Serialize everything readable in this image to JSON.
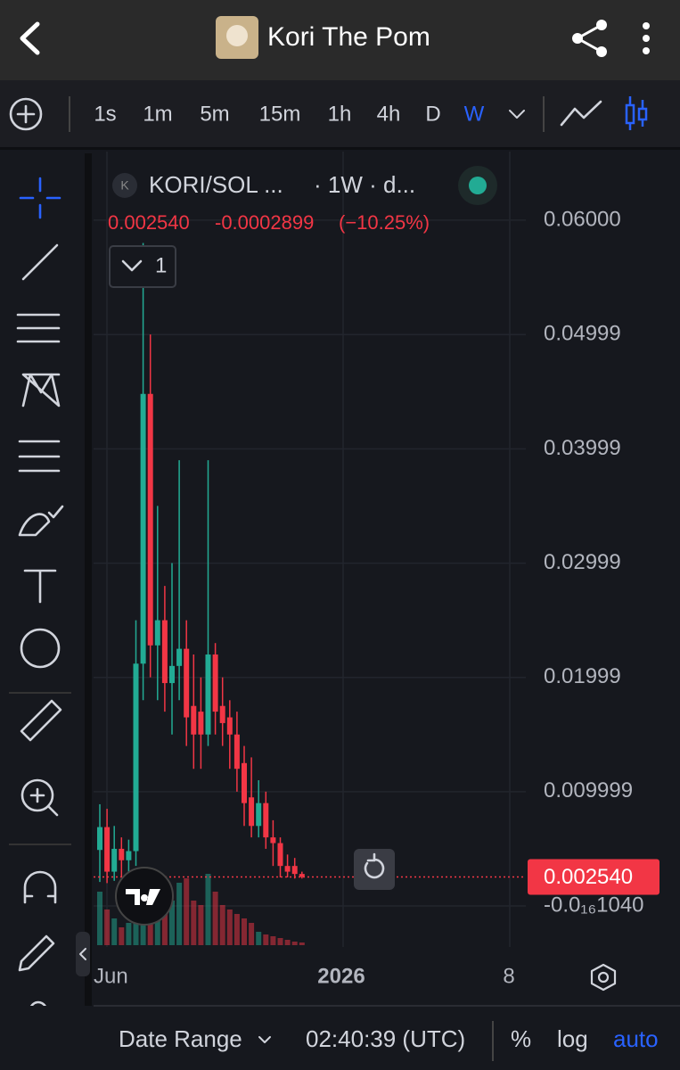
{
  "header": {
    "title": "Kori The Pom"
  },
  "toolbar": {
    "intervals": [
      "1s",
      "1m",
      "5m",
      "15m",
      "1h",
      "4h",
      "D",
      "W"
    ],
    "active": "W"
  },
  "chart_data": {
    "type": "candlestick",
    "symbol": "KORI/SOL ...",
    "interval_info": "· 1W · d...",
    "legend": {
      "last": "0.002540",
      "change": "-0.0002899",
      "change_percent": "(−10.25%)"
    },
    "indicator_count": "1",
    "up_color": "#22ab94",
    "down_color": "#f23645",
    "ylim": [
      -0.0046,
      0.066
    ],
    "yticks": [
      {
        "value": 0.06,
        "label": "0.06000"
      },
      {
        "value": 0.04999,
        "label": "0.04999"
      },
      {
        "value": 0.03999,
        "label": "0.03999"
      },
      {
        "value": 0.02999,
        "label": "0.02999"
      },
      {
        "value": 0.01999,
        "label": "0.01999"
      },
      {
        "value": 0.009999,
        "label": "0.009999"
      },
      {
        "value": -1.04e-17,
        "label": "-0.0₁₆1040"
      }
    ],
    "current_price": {
      "value": 0.00254,
      "label": "0.002540"
    },
    "x_labels": [
      "Jun",
      "2026",
      "8"
    ],
    "candles": [
      {
        "open": 0.0049,
        "high": 0.0089,
        "low": 0.0021,
        "close": 0.0069
      },
      {
        "open": 0.0069,
        "high": 0.0085,
        "low": 0.002,
        "close": 0.003
      },
      {
        "open": 0.003,
        "high": 0.007,
        "low": 0.0022,
        "close": 0.005
      },
      {
        "open": 0.005,
        "high": 0.006,
        "low": 0.0025,
        "close": 0.004
      },
      {
        "open": 0.004,
        "high": 0.0058,
        "low": 0.003,
        "close": 0.0048
      },
      {
        "open": 0.0048,
        "high": 0.025,
        "low": 0.0035,
        "close": 0.0212
      },
      {
        "open": 0.0212,
        "high": 0.058,
        "low": 0.018,
        "close": 0.0448
      },
      {
        "open": 0.0448,
        "high": 0.05,
        "low": 0.02,
        "close": 0.0228
      },
      {
        "open": 0.0228,
        "high": 0.035,
        "low": 0.018,
        "close": 0.025
      },
      {
        "open": 0.025,
        "high": 0.028,
        "low": 0.017,
        "close": 0.0195
      },
      {
        "open": 0.0195,
        "high": 0.03,
        "low": 0.015,
        "close": 0.021
      },
      {
        "open": 0.021,
        "high": 0.039,
        "low": 0.018,
        "close": 0.0225
      },
      {
        "open": 0.0225,
        "high": 0.025,
        "low": 0.014,
        "close": 0.0165
      },
      {
        "open": 0.0175,
        "high": 0.022,
        "low": 0.012,
        "close": 0.015
      },
      {
        "open": 0.017,
        "high": 0.02,
        "low": 0.012,
        "close": 0.015
      },
      {
        "open": 0.015,
        "high": 0.039,
        "low": 0.014,
        "close": 0.022
      },
      {
        "open": 0.022,
        "high": 0.023,
        "low": 0.015,
        "close": 0.017
      },
      {
        "open": 0.0175,
        "high": 0.02,
        "low": 0.014,
        "close": 0.016
      },
      {
        "open": 0.0165,
        "high": 0.018,
        "low": 0.012,
        "close": 0.015
      },
      {
        "open": 0.015,
        "high": 0.017,
        "low": 0.01,
        "close": 0.012
      },
      {
        "open": 0.0125,
        "high": 0.014,
        "low": 0.007,
        "close": 0.009
      },
      {
        "open": 0.0095,
        "high": 0.013,
        "low": 0.006,
        "close": 0.007
      },
      {
        "open": 0.007,
        "high": 0.011,
        "low": 0.006,
        "close": 0.009
      },
      {
        "open": 0.009,
        "high": 0.01,
        "low": 0.005,
        "close": 0.006
      },
      {
        "open": 0.006,
        "high": 0.0075,
        "low": 0.0035,
        "close": 0.0055
      },
      {
        "open": 0.0055,
        "high": 0.006,
        "low": 0.0025,
        "close": 0.0035
      },
      {
        "open": 0.0035,
        "high": 0.0045,
        "low": 0.0025,
        "close": 0.003
      },
      {
        "open": 0.0035,
        "high": 0.0042,
        "low": 0.0024,
        "close": 0.0028
      },
      {
        "open": 0.0028,
        "high": 0.003,
        "low": 0.0024,
        "close": 0.00254
      }
    ],
    "volumes": [
      60,
      40,
      30,
      20,
      25,
      40,
      85,
      40,
      80,
      60,
      50,
      70,
      75,
      50,
      45,
      80,
      60,
      45,
      40,
      35,
      30,
      25,
      15,
      12,
      10,
      8,
      6,
      4,
      3
    ]
  },
  "footer": {
    "date_range": "Date Range",
    "time": "02:40:39 (UTC)",
    "percent": "%",
    "log": "log",
    "auto": "auto"
  }
}
